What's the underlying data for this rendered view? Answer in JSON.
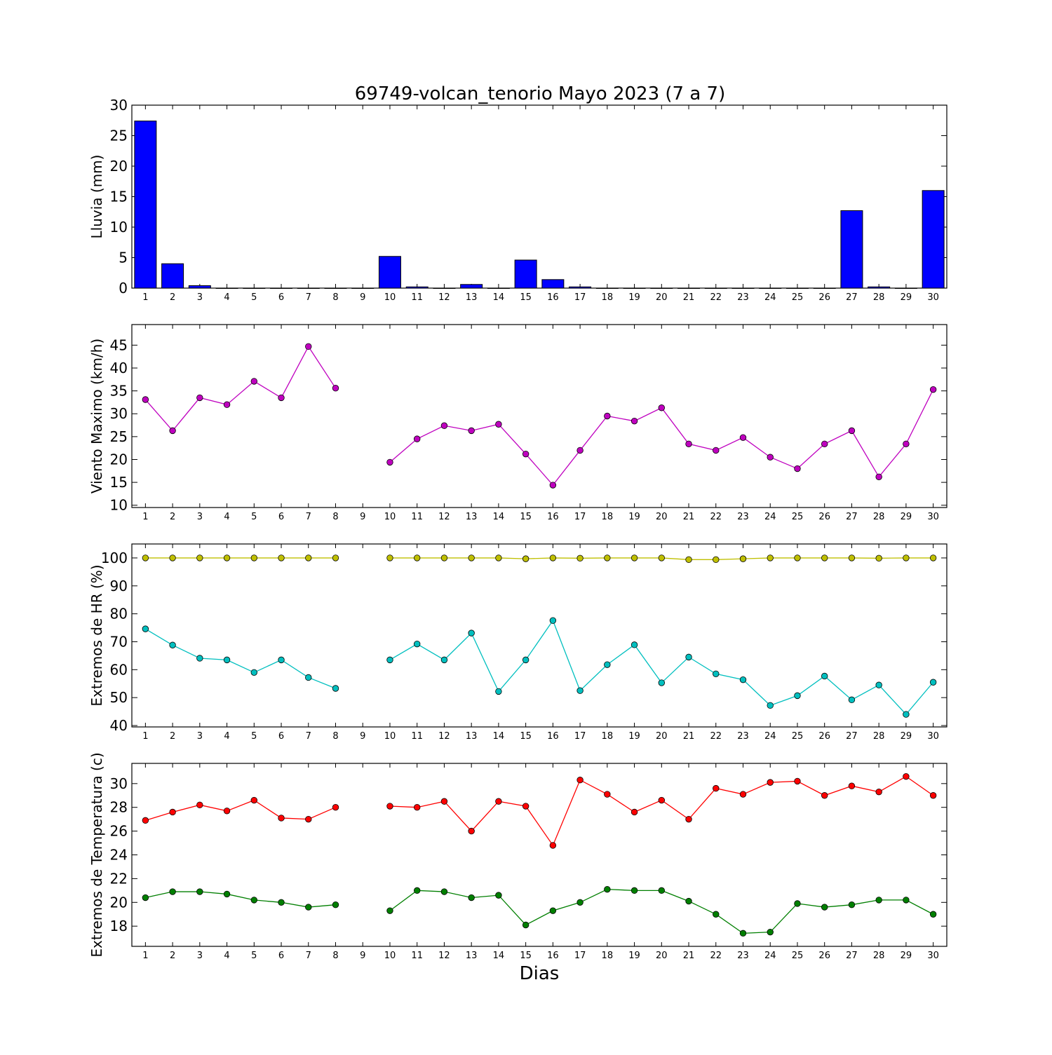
{
  "figure": {
    "title": "69749-volcan_tenorio Mayo 2023  (7 a 7)",
    "xlabel": "Dias"
  },
  "chart_data": [
    {
      "type": "bar",
      "ylabel": "Lluvia (mm)",
      "ylim": [
        0,
        30
      ],
      "yticks": [
        0,
        5,
        10,
        15,
        20,
        25,
        30
      ],
      "xlim": [
        0.5,
        30.5
      ],
      "x": [
        1,
        2,
        3,
        4,
        5,
        6,
        7,
        8,
        9,
        10,
        11,
        12,
        13,
        14,
        15,
        16,
        17,
        18,
        19,
        20,
        21,
        22,
        23,
        24,
        25,
        26,
        27,
        28,
        29,
        30
      ],
      "xtick_labels": [
        "1",
        "2",
        "3",
        "4",
        "5",
        "6",
        "7",
        "8",
        "9",
        "10",
        "11",
        "12",
        "13",
        "14",
        "15",
        "16",
        "17",
        "18",
        "19",
        "20",
        "21",
        "22",
        "23",
        "24",
        "25",
        "26",
        "27",
        "28",
        "29",
        "30"
      ],
      "series": [
        {
          "color": "#0000ff",
          "values": [
            27.4,
            4.0,
            0.4,
            0,
            0,
            0,
            0,
            0,
            0,
            5.2,
            0.2,
            0,
            0.6,
            0,
            4.6,
            1.4,
            0.2,
            0,
            0,
            0,
            0,
            0,
            0,
            0,
            0,
            0,
            12.7,
            0.2,
            0,
            16.0
          ]
        }
      ],
      "grid": false
    },
    {
      "type": "line",
      "ylabel": "Viento Maximo (km/h)",
      "ylim": [
        9.5,
        49.5
      ],
      "yticks": [
        10,
        15,
        20,
        25,
        30,
        35,
        40,
        45
      ],
      "xlim": [
        0.5,
        30.5
      ],
      "x": [
        1,
        2,
        3,
        4,
        5,
        6,
        7,
        8,
        9,
        10,
        11,
        12,
        13,
        14,
        15,
        16,
        17,
        18,
        19,
        20,
        21,
        22,
        23,
        24,
        25,
        26,
        27,
        28,
        29,
        30
      ],
      "xtick_labels": [
        "1",
        "2",
        "3",
        "4",
        "5",
        "6",
        "7",
        "8",
        "9",
        "10",
        "11",
        "12",
        "13",
        "14",
        "15",
        "16",
        "17",
        "18",
        "19",
        "20",
        "21",
        "22",
        "23",
        "24",
        "25",
        "26",
        "27",
        "28",
        "29",
        "30"
      ],
      "series": [
        {
          "color": "#bf00bf",
          "values": [
            33.1,
            26.3,
            33.5,
            32.0,
            37.1,
            33.5,
            44.7,
            35.6,
            null,
            19.4,
            24.5,
            27.4,
            26.3,
            27.7,
            21.2,
            14.4,
            22.0,
            29.5,
            28.4,
            31.3,
            23.4,
            22.0,
            24.8,
            20.5,
            18.0,
            23.4,
            26.3,
            16.2,
            23.4,
            35.3
          ]
        }
      ],
      "grid": false
    },
    {
      "type": "line",
      "ylabel": "Extremos de HR (%)",
      "ylim": [
        39.5,
        105
      ],
      "yticks": [
        40,
        50,
        60,
        70,
        80,
        90,
        100
      ],
      "xlim": [
        0.5,
        30.5
      ],
      "x": [
        1,
        2,
        3,
        4,
        5,
        6,
        7,
        8,
        9,
        10,
        11,
        12,
        13,
        14,
        15,
        16,
        17,
        18,
        19,
        20,
        21,
        22,
        23,
        24,
        25,
        26,
        27,
        28,
        29,
        30
      ],
      "xtick_labels": [
        "1",
        "2",
        "3",
        "4",
        "5",
        "6",
        "7",
        "8",
        "9",
        "10",
        "11",
        "12",
        "13",
        "14",
        "15",
        "16",
        "17",
        "18",
        "19",
        "20",
        "21",
        "22",
        "23",
        "24",
        "25",
        "26",
        "27",
        "28",
        "29",
        "30"
      ],
      "series": [
        {
          "color": "#bfbf00",
          "values": [
            100,
            100,
            100,
            100,
            100,
            100,
            100,
            100,
            null,
            100,
            100,
            100,
            100,
            100,
            99.7,
            100,
            99.9,
            100,
            100,
            100,
            99.4,
            99.4,
            99.7,
            100,
            100,
            100,
            100,
            99.9,
            100,
            100
          ]
        },
        {
          "color": "#00bfbf",
          "values": [
            74.6,
            68.8,
            64.1,
            63.5,
            59.0,
            63.5,
            57.2,
            53.3,
            null,
            63.5,
            69.2,
            63.5,
            73.1,
            52.2,
            63.5,
            77.6,
            52.5,
            61.8,
            68.9,
            55.3,
            64.5,
            58.5,
            56.4,
            47.2,
            50.7,
            57.7,
            49.2,
            54.5,
            44.0,
            55.5
          ]
        }
      ],
      "grid": false
    },
    {
      "type": "line",
      "ylabel": "Extremos de Temperatura (c)",
      "ylim": [
        16.3,
        31.7
      ],
      "yticks": [
        18,
        20,
        22,
        24,
        26,
        28,
        30
      ],
      "xlim": [
        0.5,
        30.5
      ],
      "x": [
        1,
        2,
        3,
        4,
        5,
        6,
        7,
        8,
        9,
        10,
        11,
        12,
        13,
        14,
        15,
        16,
        17,
        18,
        19,
        20,
        21,
        22,
        23,
        24,
        25,
        26,
        27,
        28,
        29,
        30
      ],
      "xtick_labels": [
        "1",
        "2",
        "3",
        "4",
        "5",
        "6",
        "7",
        "8",
        "9",
        "10",
        "11",
        "12",
        "13",
        "14",
        "15",
        "16",
        "17",
        "18",
        "19",
        "20",
        "21",
        "22",
        "23",
        "24",
        "25",
        "26",
        "27",
        "28",
        "29",
        "30"
      ],
      "series": [
        {
          "color": "#ff0000",
          "values": [
            26.9,
            27.6,
            28.2,
            27.7,
            28.6,
            27.1,
            27.0,
            28.0,
            null,
            28.1,
            28.0,
            28.5,
            26.0,
            28.5,
            28.1,
            24.8,
            30.3,
            29.1,
            27.6,
            28.6,
            27.0,
            29.6,
            29.1,
            30.1,
            30.2,
            29.0,
            29.8,
            29.3,
            30.6,
            29.0
          ]
        },
        {
          "color": "#007f00",
          "values": [
            20.4,
            20.9,
            20.9,
            20.7,
            20.2,
            20.0,
            19.6,
            19.8,
            null,
            19.3,
            21.0,
            20.9,
            20.4,
            20.6,
            18.1,
            19.3,
            20.0,
            21.1,
            21.0,
            21.0,
            20.1,
            19.0,
            17.4,
            17.5,
            19.9,
            19.6,
            19.8,
            20.2,
            20.2,
            19.0
          ]
        }
      ],
      "grid": false
    }
  ]
}
